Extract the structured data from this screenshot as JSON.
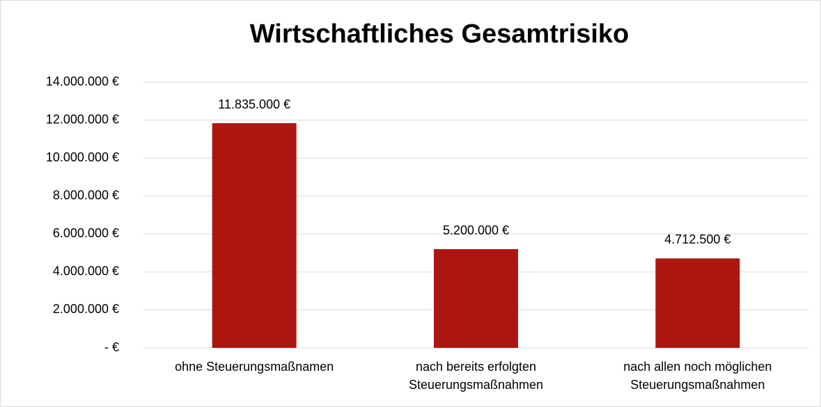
{
  "chart_data": {
    "type": "bar",
    "title": "Wirtschaftliches Gesamtrisiko",
    "categories": [
      "ohne Steuerungsmaßnamen",
      "nach bereits erfolgten Steuerungsmaßnahmen",
      "nach allen noch möglichen Steuerungsmaßnahmen"
    ],
    "values": [
      11835000,
      5200000,
      4712500
    ],
    "value_labels": [
      "11.835.000 €",
      "5.200.000 €",
      "4.712.500 €"
    ],
    "color": "#ad1511",
    "ylim": [
      0,
      14000000
    ],
    "yticks": [
      {
        "value": 0,
        "label": "-   €"
      },
      {
        "value": 2000000,
        "label": "2.000.000 €"
      },
      {
        "value": 4000000,
        "label": "4.000.000 €"
      },
      {
        "value": 6000000,
        "label": "6.000.000 €"
      },
      {
        "value": 8000000,
        "label": "8.000.000 €"
      },
      {
        "value": 10000000,
        "label": "10.000.000 €"
      },
      {
        "value": 12000000,
        "label": "12.000.000 €"
      },
      {
        "value": 14000000,
        "label": "14.000.000 €"
      }
    ],
    "grid": true
  }
}
